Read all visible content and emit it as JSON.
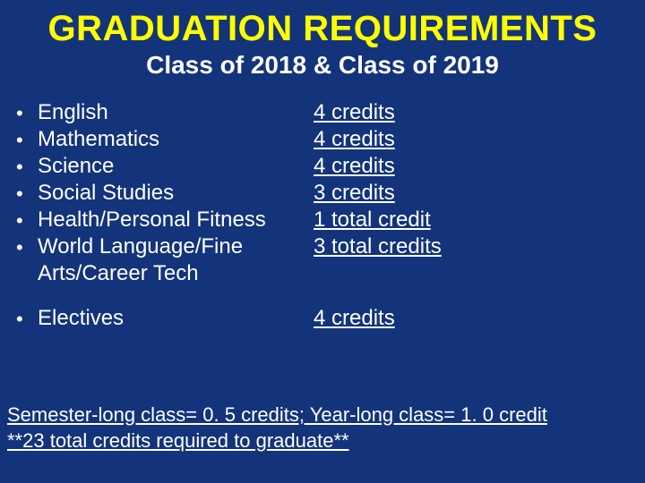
{
  "title": "GRADUATION REQUIREMENTS",
  "subtitle": "Class of 2018 & Class of 2019",
  "colors": {
    "background": "#13347b",
    "title": "#ffff00",
    "text": "#ffffff"
  },
  "typography": {
    "title_fontsize": 40,
    "subtitle_fontsize": 28,
    "body_fontsize": 24,
    "foot_fontsize": 22,
    "font_family": "Arial"
  },
  "rows": [
    {
      "bullet": "•",
      "subject": "English",
      "credits": "4 credits",
      "credits_underline": true
    },
    {
      "bullet": "•",
      "subject": "Mathematics",
      "credits": "4 credits",
      "credits_underline": true
    },
    {
      "bullet": "•",
      "subject": "Science",
      "credits": "4 credits",
      "credits_underline": true
    },
    {
      "bullet": "•",
      "subject": "Social Studies",
      "credits": "3 credits",
      "credits_underline": true
    },
    {
      "bullet": "•",
      "subject": "Health/Personal Fitness",
      "credits": "1 total credit",
      "credits_underline": true
    },
    {
      "bullet": "•",
      "subject": "World Language/Fine Arts/Career Tech",
      "credits": "3 total credits",
      "credits_underline": true
    },
    {
      "bullet": "•",
      "subject": "Electives",
      "credits": "4 credits",
      "credits_underline": true,
      "gap_before": true
    }
  ],
  "footnotes": [
    "Semester-long class= 0. 5 credits; Year-long class= 1. 0 credit",
    "**23 total credits required to graduate**"
  ]
}
